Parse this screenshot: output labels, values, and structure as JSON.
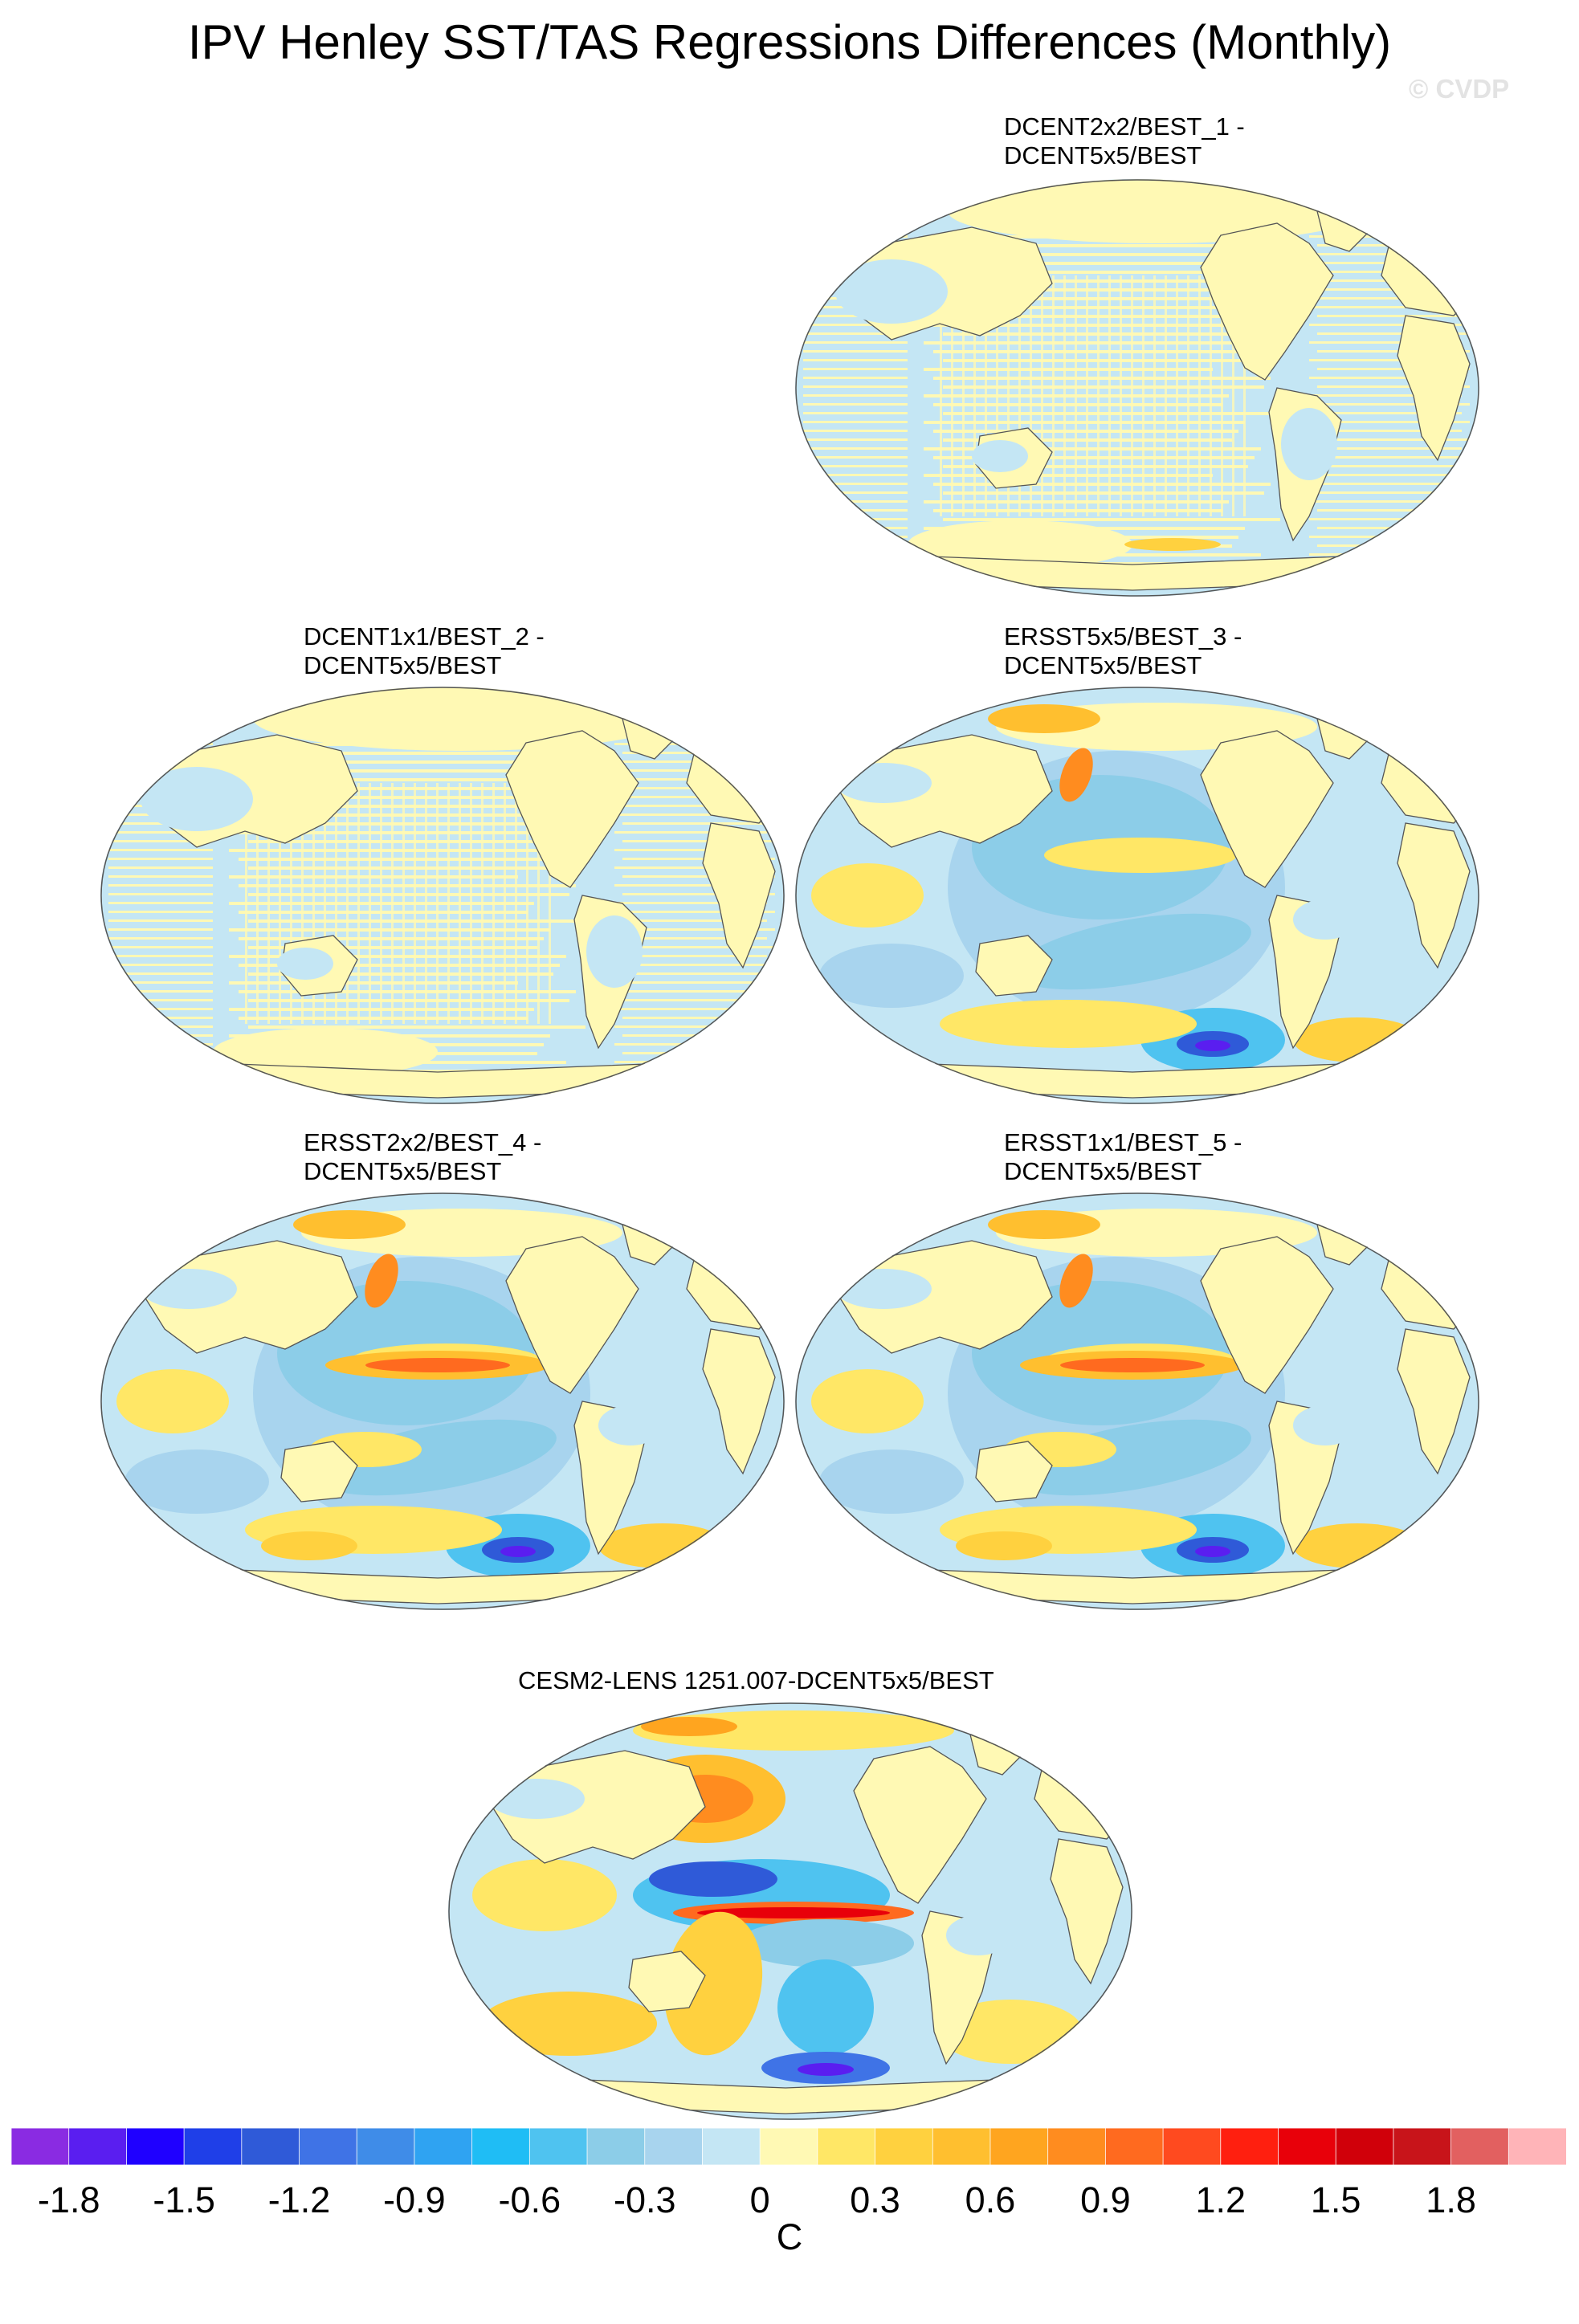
{
  "title": "IPV Henley SST/TAS Regressions Differences (Monthly)",
  "watermark": "© CVDP",
  "panels": [
    {
      "label": "DCENT2x2/BEST_1 -\nDCENT5x5/BEST",
      "style": "striped"
    },
    {
      "label": "DCENT1x1/BEST_2 -\nDCENT5x5/BEST",
      "style": "striped"
    },
    {
      "label": "ERSST5x5/BEST_3 -\nDCENT5x5/BEST",
      "style": "ersst"
    },
    {
      "label": "ERSST2x2/BEST_4 -\nDCENT5x5/BEST",
      "style": "ersst-strong"
    },
    {
      "label": "ERSST1x1/BEST_5 -\nDCENT5x5/BEST",
      "style": "ersst-strong"
    },
    {
      "label": "CESM2-LENS 1251.007-DCENT5x5/BEST",
      "style": "cesm"
    }
  ],
  "colorbar": {
    "unit": "C",
    "tick_labels": [
      "-1.8",
      "-1.5",
      "-1.2",
      "-0.9",
      "-0.6",
      "-0.3",
      "0",
      "0.3",
      "0.6",
      "0.9",
      "1.2",
      "1.5",
      "1.8"
    ],
    "colors": [
      "#8a2be2",
      "#5a1ef0",
      "#1f00ff",
      "#1f3fe8",
      "#2f5ad8",
      "#3f73e6",
      "#3f8ce8",
      "#2fa3f2",
      "#1fbdf5",
      "#4fc3f0",
      "#8ccde8",
      "#a8d4ee",
      "#c4e6f4",
      "#fff9b4",
      "#ffe766",
      "#ffd13f",
      "#ffbf2f",
      "#ffa51f",
      "#ff8c1f",
      "#ff6a1f",
      "#ff4a1f",
      "#ff1f0f",
      "#e8000a",
      "#d0000a",
      "#c8141a",
      "#e26060",
      "#ffb4b8"
    ]
  }
}
